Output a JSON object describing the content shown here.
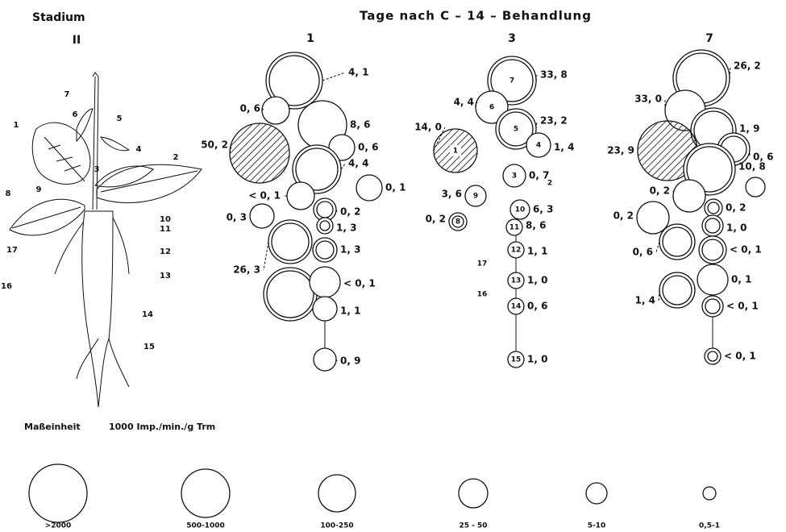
{
  "header": {
    "stadium": "Stadium",
    "stage": "II",
    "title": "Tage nach C – 14 – Behandlung"
  },
  "plant_labels": [
    "7",
    "6",
    "5",
    "1",
    "4",
    "2",
    "3",
    "8",
    "9",
    "10",
    "11",
    "17",
    "12",
    "16",
    "13",
    "14",
    "15"
  ],
  "columns": [
    {
      "day": "1",
      "nodes": [
        {
          "label": "4, 1"
        },
        {
          "label": "0, 6"
        },
        {
          "label": "8, 6"
        },
        {
          "label": "0, 6"
        },
        {
          "label": "50, 2"
        },
        {
          "label": "4, 4"
        },
        {
          "label": "0, 1"
        },
        {
          "label": "< 0, 1"
        },
        {
          "label": "0, 2"
        },
        {
          "label": "0, 3"
        },
        {
          "label": "1, 3"
        },
        {
          "label": "26, 3"
        },
        {
          "label": "1, 3"
        },
        {
          "label": "< 0, 1"
        },
        {
          "label": "1, 1"
        },
        {
          "label": "0, 9"
        }
      ]
    },
    {
      "day": "3",
      "nodes": [
        {
          "number": "7",
          "label": "33, 8"
        },
        {
          "number": "6",
          "label": "4, 4"
        },
        {
          "number": "5",
          "label": "23, 2"
        },
        {
          "number": "4",
          "label": "1, 4"
        },
        {
          "number": "1",
          "label": "14, 0"
        },
        {
          "number": "3",
          "label": "0, 7"
        },
        {
          "number": "9",
          "label": "3, 6"
        },
        {
          "number": "10",
          "label": "6, 3"
        },
        {
          "number": "8",
          "label": "0, 2"
        },
        {
          "number": "11",
          "label": "8, 6"
        },
        {
          "number": "12",
          "label": "1, 1"
        },
        {
          "number": "13",
          "label": "1, 0"
        },
        {
          "number": "14",
          "label": "0, 6"
        },
        {
          "number": "15",
          "label": "1, 0"
        }
      ],
      "markers": [
        "2",
        "17",
        "16"
      ]
    },
    {
      "day": "7",
      "nodes": [
        {
          "label": "26, 2"
        },
        {
          "label": "33, 0"
        },
        {
          "label": "1, 9"
        },
        {
          "label": "0, 6"
        },
        {
          "label": "23, 9"
        },
        {
          "label": "10, 8"
        },
        {
          "label": "0, 2"
        },
        {
          "label": "0, 2"
        },
        {
          "label": "0, 2"
        },
        {
          "label": "1, 0"
        },
        {
          "label": "0, 6"
        },
        {
          "label": "< 0, 1"
        },
        {
          "label": "0, 1"
        },
        {
          "label": "1, 4"
        },
        {
          "label": "< 0, 1"
        },
        {
          "label": "< 0, 1"
        }
      ]
    }
  ],
  "legend": {
    "unit_label": "Maßeinheit",
    "unit": "1000 Imp./min./g Trm",
    "classes": [
      ">2000",
      "500-1000",
      "100-250",
      "25 - 50",
      "5-10",
      "0,5-1"
    ]
  }
}
